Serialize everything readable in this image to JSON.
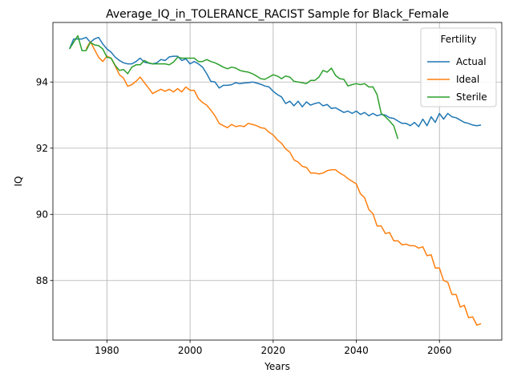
{
  "chart_data": {
    "type": "line",
    "title": "Average_IQ_in_TOLERANCE_RACIST Sample for Black_Female",
    "xlabel": "Years",
    "ylabel": "IQ",
    "xlim": [
      1967,
      2075
    ],
    "ylim": [
      86.2,
      95.8
    ],
    "xticks": [
      1980,
      2000,
      2020,
      2040,
      2060
    ],
    "yticks": [
      88,
      90,
      92,
      94
    ],
    "grid": true,
    "legend": {
      "title": "Fertility",
      "placement": "top-right"
    },
    "series": [
      {
        "name": "Actual",
        "color": "#1f77b4",
        "x": [
          1971,
          1972,
          1973,
          1974,
          1975,
          1976,
          1977,
          1978,
          1979,
          1980,
          1981,
          1982,
          1983,
          1984,
          1985,
          1986,
          1987,
          1988,
          1989,
          1990,
          1991,
          1992,
          1993,
          1994,
          1995,
          1996,
          1997,
          1998,
          1999,
          2000,
          2001,
          2002,
          2003,
          2004,
          2005,
          2006,
          2007,
          2008,
          2009,
          2010,
          2011,
          2012,
          2013,
          2014,
          2015,
          2016,
          2017,
          2018,
          2019,
          2020,
          2021,
          2022,
          2023,
          2024,
          2025,
          2026,
          2027,
          2028,
          2029,
          2030,
          2031,
          2032,
          2033,
          2034,
          2035,
          2036,
          2037,
          2038,
          2039,
          2040,
          2041,
          2042,
          2043,
          2044,
          2045,
          2046,
          2047,
          2048,
          2049,
          2050,
          2051,
          2052,
          2053,
          2054,
          2055,
          2056,
          2057,
          2058,
          2059,
          2060,
          2061,
          2062,
          2063,
          2064,
          2065,
          2066,
          2067,
          2068,
          2069,
          2070
        ],
        "values": [
          95.0,
          95.3,
          95.3,
          95.3,
          95.35,
          95.2,
          95.3,
          95.35,
          95.15,
          95.0,
          94.9,
          94.75,
          94.65,
          94.58,
          94.55,
          94.55,
          94.62,
          94.72,
          94.6,
          94.57,
          94.55,
          94.58,
          94.68,
          94.65,
          94.76,
          94.78,
          94.78,
          94.65,
          94.7,
          94.55,
          94.62,
          94.55,
          94.45,
          94.25,
          94.02,
          94.0,
          93.82,
          93.9,
          93.9,
          93.92,
          93.98,
          93.95,
          93.97,
          93.98,
          94.0,
          93.97,
          93.93,
          93.88,
          93.85,
          93.72,
          93.62,
          93.55,
          93.35,
          93.42,
          93.28,
          93.42,
          93.25,
          93.4,
          93.3,
          93.35,
          93.38,
          93.28,
          93.32,
          93.2,
          93.22,
          93.15,
          93.08,
          93.12,
          93.05,
          93.12,
          93.02,
          93.08,
          92.98,
          93.05,
          92.98,
          93.02,
          93.0,
          92.92,
          92.9,
          92.82,
          92.75,
          92.75,
          92.68,
          92.78,
          92.65,
          92.88,
          92.68,
          92.95,
          92.78,
          93.05,
          92.88,
          93.05,
          92.95,
          92.92,
          92.85,
          92.78,
          92.75,
          92.7,
          92.68,
          92.7
        ]
      },
      {
        "name": "Ideal",
        "color": "#ff7f0e",
        "x": [
          1975,
          1976,
          1977,
          1978,
          1979,
          1980,
          1981,
          1982,
          1983,
          1984,
          1985,
          1986,
          1987,
          1988,
          1989,
          1990,
          1991,
          1992,
          1993,
          1994,
          1995,
          1996,
          1997,
          1998,
          1999,
          2000,
          2001,
          2002,
          2003,
          2004,
          2005,
          2006,
          2007,
          2008,
          2009,
          2010,
          2011,
          2012,
          2013,
          2014,
          2015,
          2016,
          2017,
          2018,
          2019,
          2020,
          2021,
          2022,
          2023,
          2024,
          2025,
          2026,
          2027,
          2028,
          2029,
          2030,
          2031,
          2032,
          2033,
          2034,
          2035,
          2036,
          2037,
          2038,
          2039,
          2040,
          2041,
          2042,
          2043,
          2044,
          2045,
          2046,
          2047,
          2048,
          2049,
          2050,
          2051,
          2052,
          2053,
          2054,
          2055,
          2056,
          2057,
          2058,
          2059,
          2060,
          2061,
          2062,
          2063,
          2064,
          2065,
          2066,
          2067,
          2068,
          2069,
          2070
        ],
        "values": [
          95.0,
          95.22,
          94.98,
          94.75,
          94.62,
          94.78,
          94.72,
          94.48,
          94.22,
          94.12,
          93.87,
          93.92,
          94.02,
          94.15,
          93.98,
          93.82,
          93.65,
          93.72,
          93.78,
          93.72,
          93.78,
          93.7,
          93.8,
          93.7,
          93.85,
          93.75,
          93.75,
          93.5,
          93.38,
          93.3,
          93.15,
          92.98,
          92.75,
          92.68,
          92.62,
          92.72,
          92.65,
          92.68,
          92.65,
          92.75,
          92.72,
          92.68,
          92.62,
          92.6,
          92.48,
          92.4,
          92.25,
          92.15,
          91.98,
          91.88,
          91.65,
          91.58,
          91.45,
          91.42,
          91.25,
          91.25,
          91.22,
          91.25,
          91.32,
          91.35,
          91.35,
          91.25,
          91.18,
          91.08,
          91.0,
          90.92,
          90.62,
          90.5,
          90.15,
          90.02,
          89.65,
          89.65,
          89.42,
          89.45,
          89.2,
          89.2,
          89.08,
          89.1,
          89.05,
          89.05,
          88.98,
          89.02,
          88.75,
          88.78,
          88.38,
          88.38,
          88.0,
          87.95,
          87.58,
          87.58,
          87.2,
          87.25,
          86.88,
          86.9,
          86.65,
          86.7
        ]
      },
      {
        "name": "Sterile",
        "color": "#2ca02c",
        "x": [
          1971,
          1972,
          1973,
          1974,
          1975,
          1976,
          1977,
          1978,
          1979,
          1980,
          1981,
          1982,
          1983,
          1984,
          1985,
          1986,
          1987,
          1988,
          1989,
          1990,
          1991,
          1992,
          1993,
          1994,
          1995,
          1996,
          1997,
          1998,
          1999,
          2000,
          2001,
          2002,
          2003,
          2004,
          2005,
          2006,
          2007,
          2008,
          2009,
          2010,
          2011,
          2012,
          2013,
          2014,
          2015,
          2016,
          2017,
          2018,
          2019,
          2020,
          2021,
          2022,
          2023,
          2024,
          2025,
          2026,
          2027,
          2028,
          2029,
          2030,
          2031,
          2032,
          2033,
          2034,
          2035,
          2036,
          2037,
          2038,
          2039,
          2040,
          2041,
          2042,
          2043,
          2044,
          2045,
          2046,
          2047,
          2048,
          2049,
          2050
        ],
        "values": [
          95.0,
          95.2,
          95.4,
          94.95,
          94.95,
          95.2,
          95.12,
          95.1,
          95.0,
          94.75,
          94.72,
          94.5,
          94.35,
          94.38,
          94.25,
          94.45,
          94.52,
          94.52,
          94.65,
          94.58,
          94.55,
          94.55,
          94.55,
          94.55,
          94.52,
          94.6,
          94.75,
          94.72,
          94.72,
          94.72,
          94.72,
          94.62,
          94.62,
          94.68,
          94.62,
          94.58,
          94.52,
          94.45,
          94.4,
          94.45,
          94.42,
          94.35,
          94.32,
          94.3,
          94.25,
          94.18,
          94.1,
          94.08,
          94.15,
          94.22,
          94.18,
          94.1,
          94.18,
          94.15,
          94.02,
          94.0,
          93.98,
          93.95,
          94.05,
          94.05,
          94.15,
          94.35,
          94.3,
          94.42,
          94.2,
          94.1,
          94.08,
          93.88,
          93.92,
          93.95,
          93.92,
          93.95,
          93.85,
          93.85,
          93.62,
          93.05,
          92.95,
          92.82,
          92.68,
          92.28
        ]
      }
    ]
  }
}
